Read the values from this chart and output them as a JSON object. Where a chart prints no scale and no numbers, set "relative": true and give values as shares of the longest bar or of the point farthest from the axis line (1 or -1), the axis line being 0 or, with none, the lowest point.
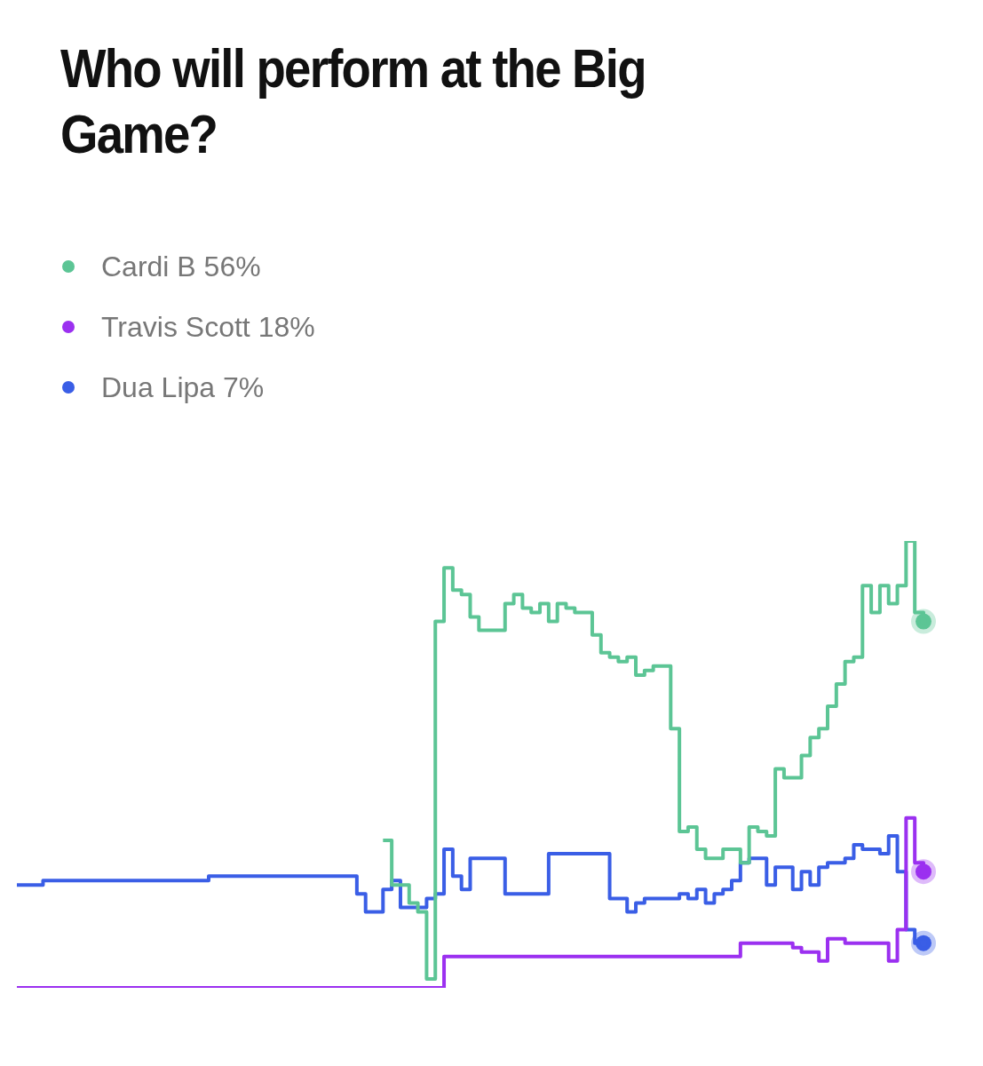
{
  "chart_data": {
    "type": "step",
    "title": "Who will perform at the Big Game?",
    "relative": true,
    "legend": "top left",
    "marker": "none",
    "categories": [
      null,
      null,
      null,
      null,
      null,
      null,
      null,
      null,
      null,
      null,
      null,
      null,
      null,
      null,
      null,
      null,
      null,
      null,
      null,
      null,
      null,
      null,
      null,
      null,
      null,
      null,
      null,
      null,
      null,
      null,
      null,
      null,
      null,
      null,
      null,
      null,
      null,
      null,
      null,
      null,
      null,
      null,
      null,
      null,
      null,
      null,
      null,
      null,
      null,
      null,
      null,
      null,
      null,
      null,
      null,
      null,
      null,
      null,
      null,
      null,
      null,
      null,
      null,
      null,
      null,
      null,
      null,
      null,
      null,
      null,
      null,
      null,
      null,
      null,
      null,
      null,
      null,
      null,
      null,
      null,
      null,
      null,
      null,
      null,
      null,
      null,
      null,
      null,
      null,
      null,
      null,
      null,
      null,
      null,
      null,
      null,
      null,
      null,
      null,
      null,
      null,
      null,
      null,
      null,
      null
    ],
    "series": [
      {
        "name": "Cardi B 56%",
        "color": "#5cc595",
        "values": [
          null,
          null,
          null,
          null,
          null,
          null,
          null,
          null,
          null,
          null,
          null,
          null,
          null,
          null,
          null,
          null,
          null,
          null,
          null,
          null,
          null,
          null,
          null,
          null,
          null,
          null,
          null,
          null,
          null,
          null,
          null,
          null,
          null,
          null,
          null,
          null,
          null,
          null,
          null,
          null,
          null,
          null,
          0.33,
          0.23,
          0.23,
          0.19,
          0.17,
          0.02,
          0.82,
          0.94,
          0.89,
          0.88,
          0.83,
          0.8,
          0.8,
          0.8,
          0.86,
          0.88,
          0.85,
          0.84,
          0.86,
          0.82,
          0.86,
          0.85,
          0.84,
          0.84,
          0.79,
          0.75,
          0.74,
          0.73,
          0.74,
          0.7,
          0.71,
          0.72,
          0.72,
          0.58,
          0.35,
          0.36,
          0.31,
          0.29,
          0.29,
          0.31,
          0.31,
          0.28,
          0.36,
          0.35,
          0.34,
          0.49,
          0.47,
          0.47,
          0.52,
          0.56,
          0.58,
          0.63,
          0.68,
          0.73,
          0.74,
          0.9,
          0.84,
          0.9,
          0.86,
          0.9,
          1.0,
          0.84,
          0.82
        ]
      },
      {
        "name": "Travis Scott 18%",
        "color": "#9b30f0",
        "values": [
          0,
          0,
          0,
          0,
          0,
          0,
          0,
          0,
          0,
          0,
          0,
          0,
          0,
          0,
          0,
          0,
          0,
          0,
          0,
          0,
          0,
          0,
          0,
          0,
          0,
          0,
          0,
          0,
          0,
          0,
          0,
          0,
          0,
          0,
          0,
          0,
          0,
          0,
          0,
          0,
          0,
          0,
          0,
          0,
          0,
          0,
          0,
          0,
          0,
          0.07,
          0.07,
          0.07,
          0.07,
          0.07,
          0.07,
          0.07,
          0.07,
          0.07,
          0.07,
          0.07,
          0.07,
          0.07,
          0.07,
          0.07,
          0.07,
          0.07,
          0.07,
          0.07,
          0.07,
          0.07,
          0.07,
          0.07,
          0.07,
          0.07,
          0.07,
          0.07,
          0.07,
          0.07,
          0.07,
          0.07,
          0.07,
          0.07,
          0.07,
          0.1,
          0.1,
          0.1,
          0.1,
          0.1,
          0.1,
          0.09,
          0.08,
          0.08,
          0.06,
          0.11,
          0.11,
          0.1,
          0.1,
          0.1,
          0.1,
          0.1,
          0.06,
          0.13,
          0.38,
          0.28,
          0.26
        ]
      },
      {
        "name": "Dua Lipa 7%",
        "color": "#3a5ee6",
        "values": [
          0.23,
          0.23,
          0.23,
          0.24,
          0.24,
          0.24,
          0.24,
          0.24,
          0.24,
          0.24,
          0.24,
          0.24,
          0.24,
          0.24,
          0.24,
          0.24,
          0.24,
          0.24,
          0.24,
          0.24,
          0.24,
          0.24,
          0.25,
          0.25,
          0.25,
          0.25,
          0.25,
          0.25,
          0.25,
          0.25,
          0.25,
          0.25,
          0.25,
          0.25,
          0.25,
          0.25,
          0.25,
          0.25,
          0.25,
          0.21,
          0.17,
          0.17,
          0.22,
          0.24,
          0.18,
          0.18,
          0.18,
          0.2,
          0.21,
          0.31,
          0.25,
          0.22,
          0.29,
          0.29,
          0.29,
          0.29,
          0.21,
          0.21,
          0.21,
          0.21,
          0.21,
          0.3,
          0.3,
          0.3,
          0.3,
          0.3,
          0.3,
          0.3,
          0.2,
          0.2,
          0.17,
          0.19,
          0.2,
          0.2,
          0.2,
          0.2,
          0.21,
          0.2,
          0.22,
          0.19,
          0.21,
          0.22,
          0.24,
          0.28,
          0.29,
          0.29,
          0.23,
          0.27,
          0.27,
          0.22,
          0.26,
          0.23,
          0.27,
          0.28,
          0.28,
          0.29,
          0.32,
          0.31,
          0.31,
          0.3,
          0.34,
          0.26,
          0.13,
          0.1,
          0.1
        ]
      }
    ]
  }
}
